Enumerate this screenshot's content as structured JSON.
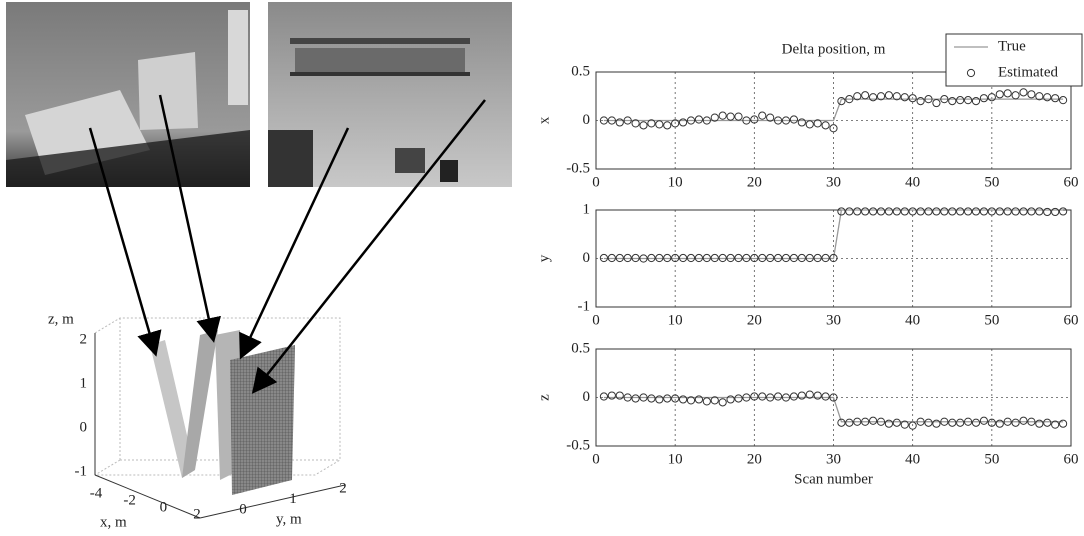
{
  "chart_data": [
    {
      "type": "line",
      "title": "Delta position, m",
      "y_label": "x",
      "legend": "upper right",
      "grid": true,
      "x": [
        1,
        2,
        3,
        4,
        5,
        6,
        7,
        8,
        9,
        10,
        11,
        12,
        13,
        14,
        15,
        16,
        17,
        18,
        19,
        20,
        21,
        22,
        23,
        24,
        25,
        26,
        27,
        28,
        29,
        30,
        31,
        32,
        33,
        34,
        35,
        36,
        37,
        38,
        39,
        40,
        41,
        42,
        43,
        44,
        45,
        46,
        47,
        48,
        49,
        50,
        51,
        52,
        53,
        54,
        55,
        56,
        57,
        58,
        59
      ],
      "xlim": [
        0,
        60
      ],
      "xticks": [
        0,
        10,
        20,
        30,
        40,
        50,
        60
      ],
      "ylim": [
        -0.5,
        0.5
      ],
      "yticks": [
        -0.5,
        0,
        0.5
      ],
      "series": [
        {
          "name": "True",
          "color": "#999999",
          "values": [
            0,
            0,
            0,
            0,
            0,
            0,
            0,
            0,
            0,
            0,
            0,
            0,
            0,
            0,
            0,
            0,
            0,
            0,
            0,
            0,
            0,
            0,
            0,
            0,
            0,
            0,
            0,
            0,
            0,
            0,
            0.22,
            0.22,
            0.22,
            0.22,
            0.22,
            0.22,
            0.22,
            0.22,
            0.22,
            0.22,
            0.22,
            0.22,
            0.22,
            0.22,
            0.22,
            0.22,
            0.22,
            0.22,
            0.22,
            0.22,
            0.22,
            0.22,
            0.22,
            0.22,
            0.22,
            0.22,
            0.22,
            0.22,
            0.22
          ]
        },
        {
          "name": "Estimated",
          "color": "#333333",
          "marker": "circle",
          "values": [
            0,
            0,
            -0.02,
            0,
            -0.03,
            -0.05,
            -0.03,
            -0.04,
            -0.05,
            -0.03,
            -0.02,
            0,
            0.01,
            0,
            0.03,
            0.05,
            0.04,
            0.04,
            0,
            0.01,
            0.05,
            0.03,
            0,
            0,
            0.01,
            -0.02,
            -0.04,
            -0.03,
            -0.05,
            -0.08,
            0.2,
            0.22,
            0.25,
            0.26,
            0.24,
            0.25,
            0.26,
            0.25,
            0.24,
            0.23,
            0.2,
            0.22,
            0.18,
            0.22,
            0.2,
            0.21,
            0.21,
            0.2,
            0.23,
            0.24,
            0.27,
            0.28,
            0.26,
            0.29,
            0.27,
            0.25,
            0.24,
            0.23,
            0.21
          ]
        }
      ]
    },
    {
      "type": "line",
      "y_label": "y",
      "grid": true,
      "x": [
        1,
        2,
        3,
        4,
        5,
        6,
        7,
        8,
        9,
        10,
        11,
        12,
        13,
        14,
        15,
        16,
        17,
        18,
        19,
        20,
        21,
        22,
        23,
        24,
        25,
        26,
        27,
        28,
        29,
        30,
        31,
        32,
        33,
        34,
        35,
        36,
        37,
        38,
        39,
        40,
        41,
        42,
        43,
        44,
        45,
        46,
        47,
        48,
        49,
        50,
        51,
        52,
        53,
        54,
        55,
        56,
        57,
        58,
        59
      ],
      "xlim": [
        0,
        60
      ],
      "xticks": [
        0,
        10,
        20,
        30,
        40,
        50,
        60
      ],
      "ylim": [
        -1,
        1
      ],
      "yticks": [
        -1,
        0,
        1
      ],
      "series": [
        {
          "name": "True",
          "color": "#999999",
          "values": [
            0,
            0,
            0,
            0,
            0,
            0,
            0,
            0,
            0,
            0,
            0,
            0,
            0,
            0,
            0,
            0,
            0,
            0,
            0,
            0,
            0,
            0,
            0,
            0,
            0,
            0,
            0,
            0,
            0,
            0,
            1,
            1,
            1,
            1,
            1,
            1,
            1,
            1,
            1,
            1,
            1,
            1,
            1,
            1,
            1,
            1,
            1,
            1,
            1,
            1,
            1,
            1,
            1,
            1,
            1,
            1,
            1,
            1,
            1
          ]
        },
        {
          "name": "Estimated",
          "color": "#333333",
          "marker": "circle",
          "values": [
            0.01,
            0.01,
            0.01,
            0.01,
            0.01,
            0,
            0.01,
            0.01,
            0.01,
            0.01,
            0.01,
            0.01,
            0.01,
            0.01,
            0.01,
            0.01,
            0.01,
            0.01,
            0.01,
            0.01,
            0.01,
            0.01,
            0.01,
            0.01,
            0.01,
            0.01,
            0.01,
            0.01,
            0.01,
            0.01,
            0.97,
            0.97,
            0.97,
            0.97,
            0.97,
            0.97,
            0.97,
            0.97,
            0.97,
            0.97,
            0.97,
            0.97,
            0.97,
            0.97,
            0.97,
            0.97,
            0.97,
            0.97,
            0.97,
            0.97,
            0.97,
            0.97,
            0.97,
            0.97,
            0.97,
            0.97,
            0.96,
            0.96,
            0.97
          ]
        }
      ]
    },
    {
      "type": "line",
      "y_label": "z",
      "x_label": "Scan number",
      "grid": true,
      "x": [
        1,
        2,
        3,
        4,
        5,
        6,
        7,
        8,
        9,
        10,
        11,
        12,
        13,
        14,
        15,
        16,
        17,
        18,
        19,
        20,
        21,
        22,
        23,
        24,
        25,
        26,
        27,
        28,
        29,
        30,
        31,
        32,
        33,
        34,
        35,
        36,
        37,
        38,
        39,
        40,
        41,
        42,
        43,
        44,
        45,
        46,
        47,
        48,
        49,
        50,
        51,
        52,
        53,
        54,
        55,
        56,
        57,
        58,
        59
      ],
      "xlim": [
        0,
        60
      ],
      "xticks": [
        0,
        10,
        20,
        30,
        40,
        50,
        60
      ],
      "ylim": [
        -0.5,
        0.5
      ],
      "yticks": [
        -0.5,
        0,
        0.5
      ],
      "series": [
        {
          "name": "True",
          "color": "#999999",
          "values": [
            0,
            0,
            0,
            0,
            0,
            0,
            0,
            0,
            0,
            0,
            0,
            0,
            0,
            0,
            0,
            0,
            0,
            0,
            0,
            0,
            0,
            0,
            0,
            0,
            0,
            0,
            0,
            0,
            0,
            0,
            -0.25,
            -0.25,
            -0.25,
            -0.25,
            -0.25,
            -0.25,
            -0.25,
            -0.25,
            -0.25,
            -0.25,
            -0.25,
            -0.25,
            -0.25,
            -0.25,
            -0.25,
            -0.25,
            -0.25,
            -0.25,
            -0.25,
            -0.25,
            -0.25,
            -0.25,
            -0.25,
            -0.25,
            -0.25,
            -0.25,
            -0.25,
            -0.25,
            -0.25
          ]
        },
        {
          "name": "Estimated",
          "color": "#333333",
          "marker": "circle",
          "values": [
            0.01,
            0.02,
            0.02,
            0,
            -0.01,
            0,
            -0.01,
            -0.02,
            -0.01,
            -0.01,
            -0.02,
            -0.03,
            -0.02,
            -0.04,
            -0.03,
            -0.05,
            -0.02,
            -0.01,
            0,
            0.01,
            0.01,
            0,
            0.01,
            0,
            0.01,
            0.02,
            0.03,
            0.02,
            0.01,
            0,
            -0.26,
            -0.26,
            -0.25,
            -0.25,
            -0.24,
            -0.25,
            -0.27,
            -0.26,
            -0.28,
            -0.29,
            -0.25,
            -0.26,
            -0.27,
            -0.25,
            -0.26,
            -0.26,
            -0.25,
            -0.26,
            -0.24,
            -0.26,
            -0.27,
            -0.25,
            -0.26,
            -0.24,
            -0.25,
            -0.27,
            -0.26,
            -0.28,
            -0.27
          ]
        }
      ]
    }
  ],
  "surface_plot": {
    "z_label": "z, m",
    "z_ticks": [
      2,
      1,
      0,
      -1
    ],
    "x_label": "x, m",
    "x_ticks": [
      -4,
      -2,
      0,
      2
    ],
    "y_label": "y, m",
    "y_ticks": [
      0,
      1,
      2
    ]
  }
}
